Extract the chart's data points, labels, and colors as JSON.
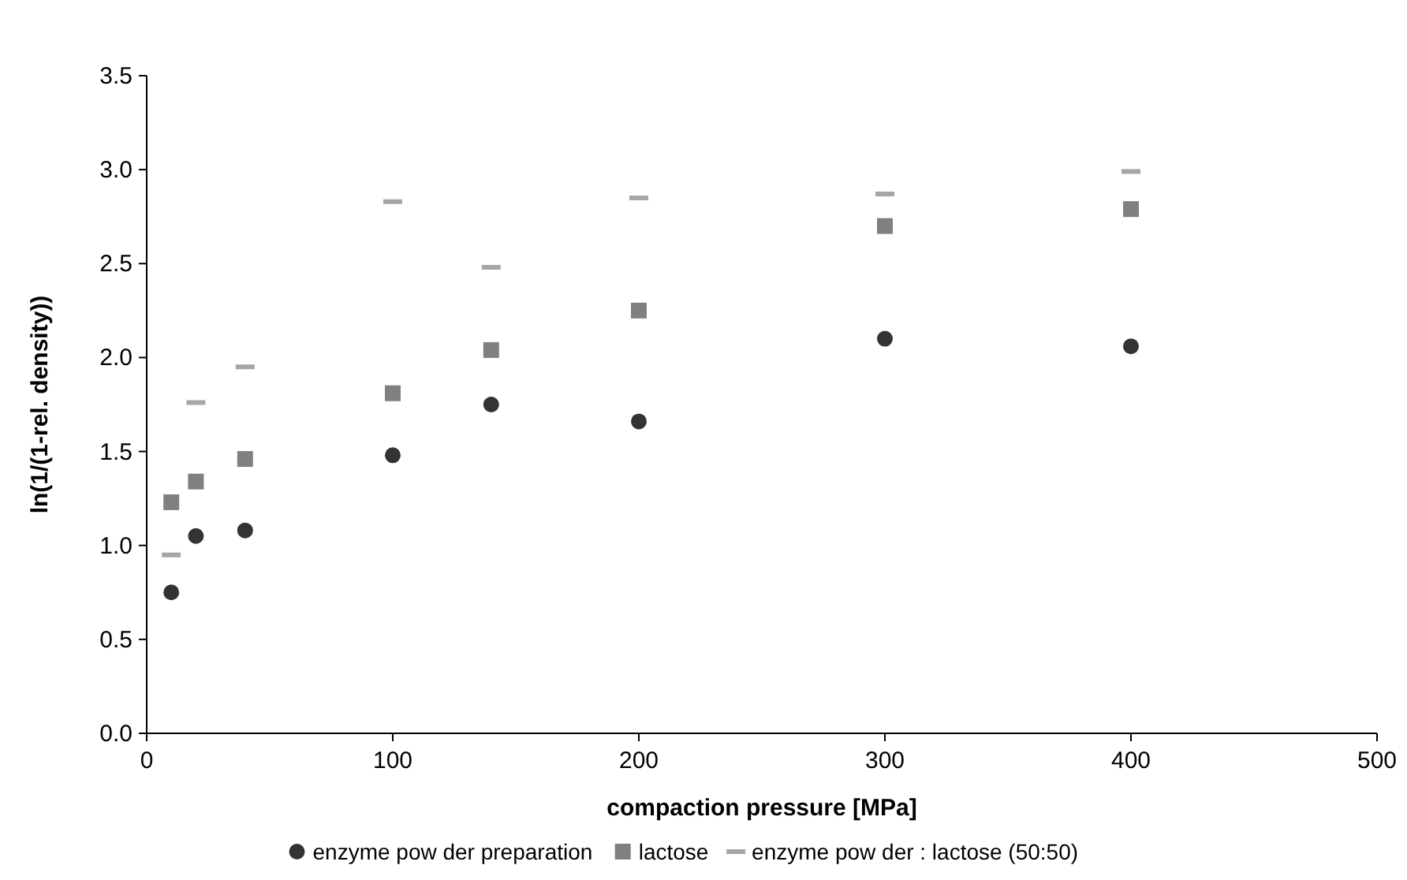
{
  "chart_data": {
    "type": "scatter",
    "xlabel": "compaction pressure [MPa]",
    "ylabel": "ln(1/(1-rel. density))",
    "x": [
      10,
      20,
      40,
      100,
      140,
      200,
      300,
      400
    ],
    "xlim": [
      0,
      500
    ],
    "xticks": [
      0,
      100,
      200,
      300,
      400,
      500
    ],
    "ylim": [
      0,
      3.5
    ],
    "yticks": [
      {
        "value": 0,
        "label": "0.0"
      },
      {
        "value": 0.5,
        "label": "0.5"
      },
      {
        "value": 1,
        "label": "1.0"
      },
      {
        "value": 1.5,
        "label": "1.5"
      },
      {
        "value": 2,
        "label": "2.0"
      },
      {
        "value": 2.5,
        "label": "2.5"
      },
      {
        "value": 3,
        "label": "3.0"
      },
      {
        "value": 3.5,
        "label": "3.5"
      }
    ],
    "grid": false,
    "legend": "bottom",
    "series": [
      {
        "name": "enzyme pow der preparation",
        "color": "#333333",
        "marker": "circle",
        "values": [
          0.75,
          1.05,
          1.08,
          1.48,
          1.75,
          1.66,
          2.1,
          2.06
        ]
      },
      {
        "name": "lactose",
        "color": "#808080",
        "marker": "square",
        "values": [
          1.23,
          1.34,
          1.46,
          1.81,
          2.04,
          2.25,
          2.7,
          2.79
        ]
      },
      {
        "name": "enzyme pow der : lactose (50:50)",
        "color": "#a6a6a6",
        "values": [
          0.95,
          1.76,
          1.95,
          2.83,
          2.48,
          2.85,
          2.87,
          2.99
        ]
      }
    ]
  }
}
